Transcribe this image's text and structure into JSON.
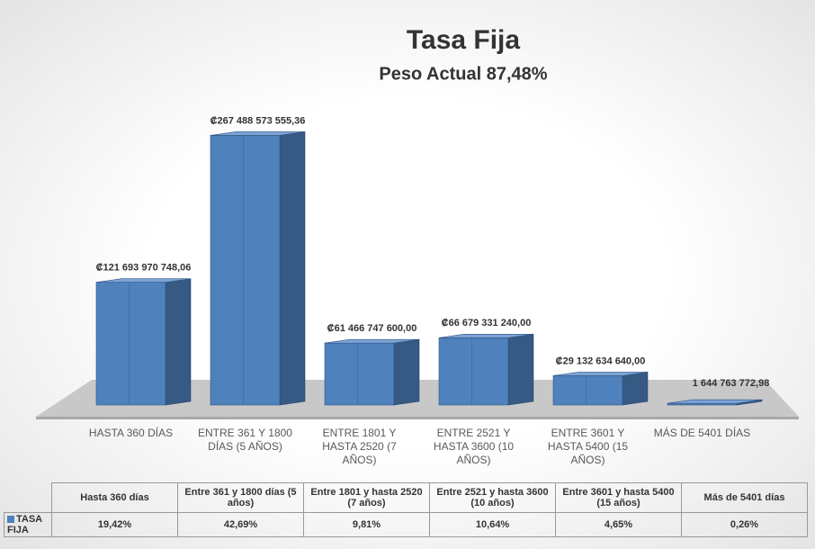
{
  "chart_data": {
    "type": "bar3d",
    "title": "Tasa Fija",
    "subtitle": "Peso Actual 87,48%",
    "categories": [
      "HASTA 360 DÍAS",
      "ENTRE 361 Y 1800 DÍAS (5 AÑOS)",
      "ENTRE 1801 Y HASTA 2520 (7 AÑOS)",
      "ENTRE  2521 Y HASTA 3600 (10 AÑOS)",
      "ENTRE 3601 Y HASTA 5400 (15 AÑOS)",
      "MÁS DE 5401 DÍAS"
    ],
    "series": [
      {
        "name": "TASA FIJA",
        "color": "#4f81bd",
        "values": [
          121693970748.06,
          267488573555.36,
          61466747600.0,
          66679331240.0,
          29132634640.0,
          1644763772.98
        ],
        "value_labels": [
          "₡121 693 970 748,06",
          "₡267 488 573 555,36",
          "₡61 466 747 600,00",
          "₡66 679 331 240,00",
          "₡29 132 634 640,00",
          "1 644 763 772,98"
        ]
      }
    ],
    "ylim": [
      0,
      300000000000
    ],
    "table": {
      "columns": [
        "Hasta 360 días",
        "Entre 361 y 1800 días (5 años)",
        "Entre 1801 y hasta 2520 (7 años)",
        "Entre  2521 y hasta 3600 (10 años)",
        "Entre 3601 y hasta 5400 (15 años)",
        "Más de 5401 días"
      ],
      "row_label": "TASA FIJA",
      "values": [
        "19,42%",
        "42,69%",
        "9,81%",
        "10,64%",
        "4,65%",
        "0,26%"
      ]
    }
  }
}
